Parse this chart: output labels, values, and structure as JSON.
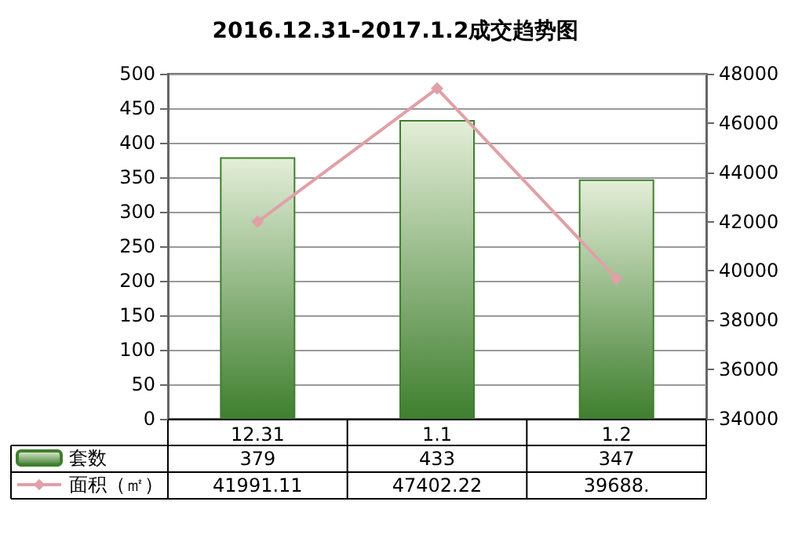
{
  "chart_data": {
    "type": "bar",
    "title": "2016.12.31-2017.1.2成交趋势图",
    "categories": [
      "12.31",
      "1.1",
      "1.2"
    ],
    "series": [
      {
        "name": "套数",
        "color": "#3f7f2f",
        "values": [
          379,
          433,
          347
        ],
        "value_labels": [
          "379",
          "433",
          "347"
        ]
      },
      {
        "name": "面积（㎡）",
        "type": "line",
        "axis": "y2",
        "color": "#e0a0a8",
        "marker": "diamond",
        "values": [
          41991.11,
          47402.22,
          39688
        ],
        "value_labels": [
          "41991.11",
          "47402.22",
          "39688."
        ]
      }
    ],
    "ylim": [
      0,
      500
    ],
    "yticks": [
      0,
      50,
      100,
      150,
      200,
      250,
      300,
      350,
      400,
      450,
      500
    ],
    "y2lim": [
      34000,
      48000
    ],
    "y2ticks": [
      34000,
      36000,
      38000,
      40000,
      42000,
      44000,
      46000,
      48000
    ],
    "grid": "y",
    "legend": "bottom left"
  }
}
